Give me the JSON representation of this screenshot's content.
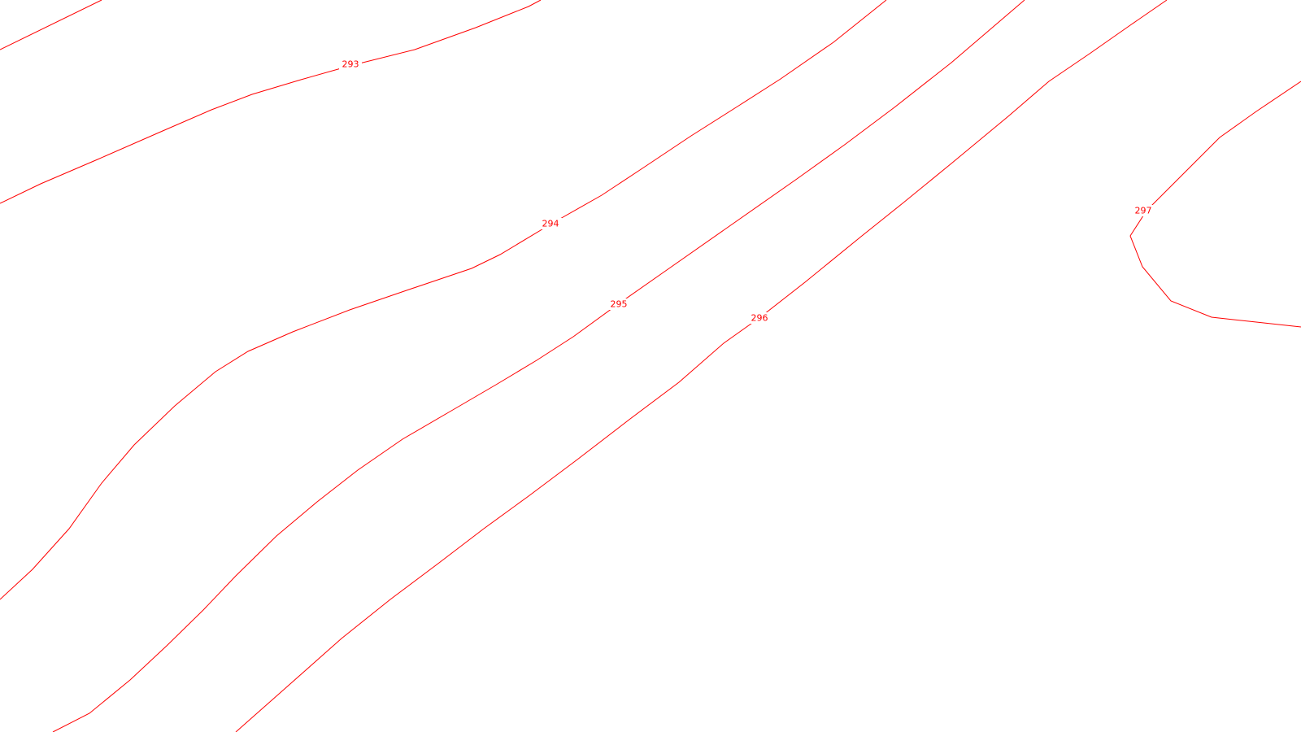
{
  "map": {
    "line_color": "#ff0000",
    "background": "#ffffff",
    "contours": [
      {
        "id": "upper-unlabeled",
        "label": ""
      },
      {
        "id": "c293",
        "label": "293"
      },
      {
        "id": "c294",
        "label": "294"
      },
      {
        "id": "c295",
        "label": "295"
      },
      {
        "id": "c296",
        "label": "296"
      },
      {
        "id": "c297",
        "label": "297"
      }
    ]
  }
}
